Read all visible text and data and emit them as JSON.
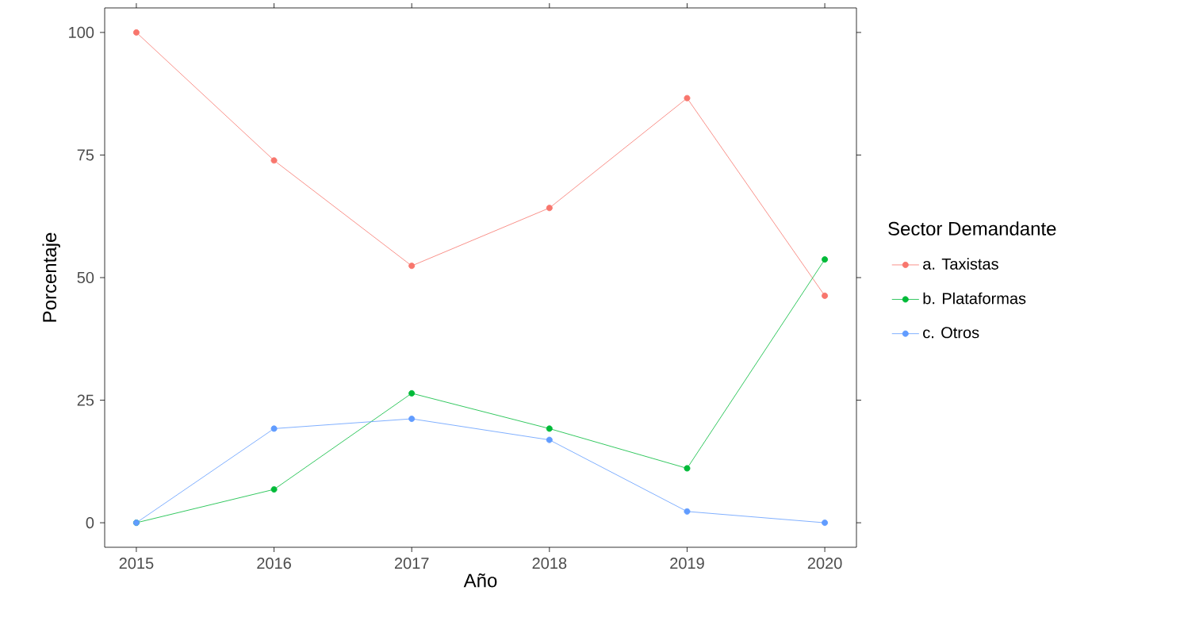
{
  "chart_data": {
    "type": "line",
    "xlabel": "Año",
    "ylabel": "Porcentaje",
    "legend_title": "Sector Demandante",
    "x": [
      2015,
      2016,
      2017,
      2018,
      2019,
      2020
    ],
    "series": [
      {
        "name": "a. Taxistas",
        "color": "#F8766D",
        "values": [
          100,
          73.9,
          52.4,
          64.2,
          86.6,
          46.3
        ]
      },
      {
        "name": "b. Plataformas",
        "color": "#00BA38",
        "values": [
          0,
          6.8,
          26.4,
          19.2,
          11.1,
          53.7
        ]
      },
      {
        "name": "c. Otros",
        "color": "#619CFF",
        "values": [
          0,
          19.2,
          21.2,
          16.9,
          2.3,
          0
        ]
      }
    ],
    "xlim": [
      2014.77,
      2020.23
    ],
    "ylim": [
      -5,
      105
    ],
    "xticks": [
      2015,
      2016,
      2017,
      2018,
      2019,
      2020
    ],
    "yticks": [
      0,
      25,
      50,
      75,
      100
    ],
    "grid": false,
    "legend": "right",
    "marker": "circle",
    "line_style": "solid"
  }
}
